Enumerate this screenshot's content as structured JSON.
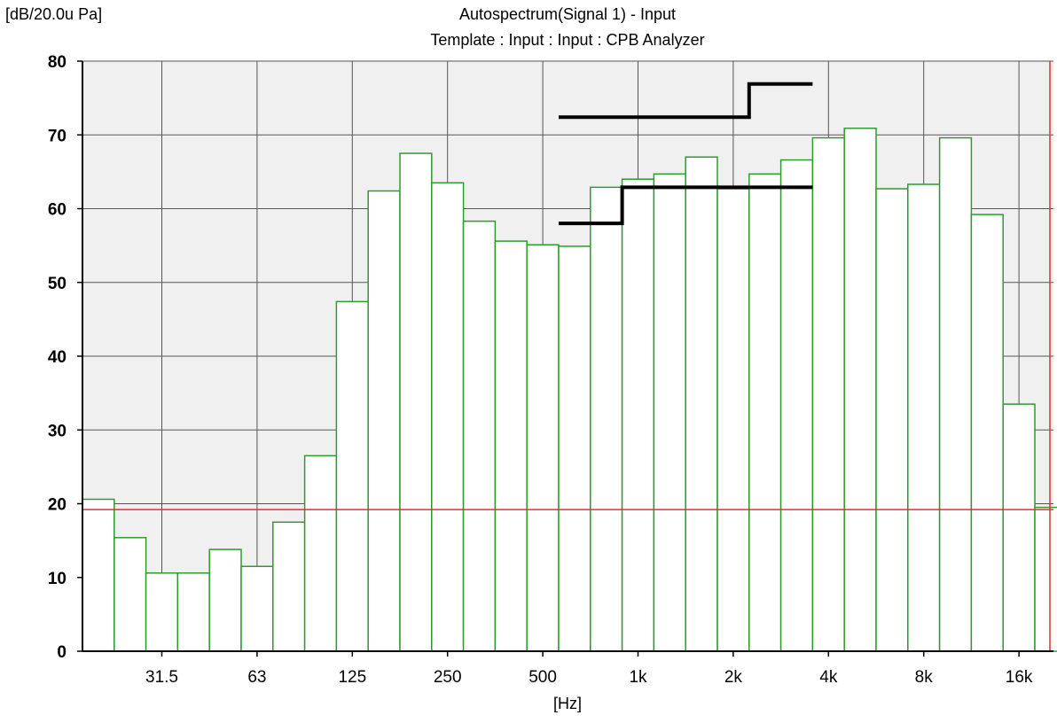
{
  "chart_data": {
    "type": "bar",
    "title": "Autospectrum(Signal 1) - Input",
    "subtitle": "Template : Input : Input : CPB Analyzer",
    "ylabel": "[dB/20.0u Pa]",
    "xlabel": "[Hz]",
    "ylim": [
      0,
      80
    ],
    "yticks": [
      "0",
      "10",
      "20",
      "30",
      "40",
      "50",
      "60",
      "70",
      "80"
    ],
    "xscale": "log (1/3-octave bands)",
    "xticks": [
      "31.5",
      "63",
      "125",
      "250",
      "500",
      "1k",
      "2k",
      "4k",
      "8k",
      "16k"
    ],
    "grid": true,
    "categories": [
      "20",
      "25",
      "31.5",
      "40",
      "50",
      "63",
      "80",
      "100",
      "125",
      "160",
      "200",
      "250",
      "315",
      "400",
      "500",
      "630",
      "800",
      "1k",
      "1.25k",
      "1.6k",
      "2k",
      "2.5k",
      "3.15k",
      "4k",
      "5k",
      "6.3k",
      "8k",
      "10k",
      "12.5k",
      "16k",
      "20k"
    ],
    "values": [
      20.6,
      15.4,
      10.6,
      10.6,
      13.8,
      11.5,
      17.5,
      26.5,
      47.4,
      62.4,
      67.5,
      63.5,
      58.3,
      55.6,
      55.1,
      54.9,
      62.9,
      64.0,
      64.7,
      67.0,
      62.7,
      64.7,
      66.6,
      69.6,
      70.9,
      62.7,
      63.3,
      69.6,
      59.2,
      33.5,
      19.5
    ],
    "reference_line": {
      "value": 19.2,
      "color": "#e03030"
    },
    "cursor_line": {
      "band": "20k",
      "color": "#e03030"
    },
    "limit_lines": [
      {
        "points": [
          [
            "630",
            72.4
          ],
          [
            "2k",
            72.4
          ],
          [
            "2.5k",
            76.9
          ],
          [
            "3.15k",
            76.9
          ]
        ]
      },
      {
        "points": [
          [
            "630",
            58.0
          ],
          [
            "800",
            58.0
          ],
          [
            "1k",
            62.9
          ],
          [
            "3.15k",
            62.9
          ]
        ]
      }
    ],
    "colors": {
      "bar_edge": "#2e9b2e",
      "bar_fill": "#ffffff",
      "plot_bg": "#f0f0f0",
      "grid": "#555555",
      "limit": "#000000"
    }
  }
}
